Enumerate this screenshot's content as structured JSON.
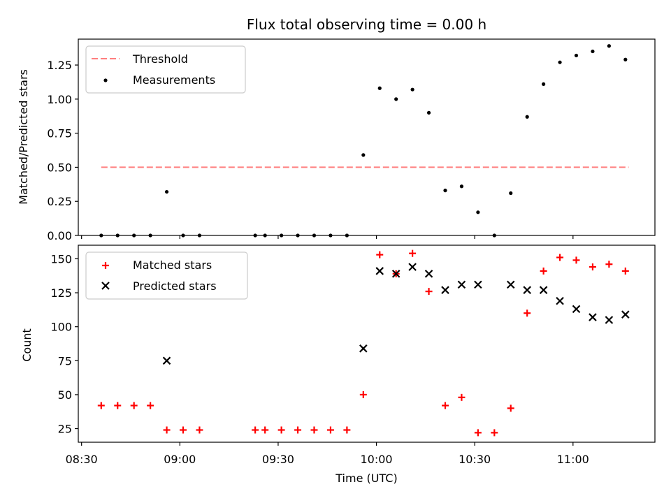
{
  "chart_data": [
    {
      "type": "scatter",
      "title": "Flux total observing time = 0.00 h",
      "xlabel": "",
      "ylabel": "Matched/Predicted stars",
      "xlim": [
        "08:29",
        "11:25"
      ],
      "ylim": [
        0,
        1.44
      ],
      "yticks": [
        "0.00",
        "0.25",
        "0.50",
        "0.75",
        "1.00",
        "1.25"
      ],
      "xticks_labels_shown": false,
      "legend_position": "top-left",
      "threshold": {
        "name": "Threshold",
        "value": 0.5,
        "x_range": [
          "08:36",
          "11:17"
        ],
        "color": "#ff7f7f",
        "style": "dashed"
      },
      "series": [
        {
          "name": "Measurements",
          "marker": "dot",
          "color": "#000000",
          "points": [
            [
              "08:36",
              0.0
            ],
            [
              "08:41",
              0.0
            ],
            [
              "08:46",
              0.0
            ],
            [
              "08:51",
              0.0
            ],
            [
              "08:56",
              0.32
            ],
            [
              "09:01",
              0.0
            ],
            [
              "09:06",
              0.0
            ],
            [
              "09:23",
              0.0
            ],
            [
              "09:26",
              0.0
            ],
            [
              "09:31",
              0.0
            ],
            [
              "09:36",
              0.0
            ],
            [
              "09:41",
              0.0
            ],
            [
              "09:46",
              0.0
            ],
            [
              "09:51",
              0.0
            ],
            [
              "09:56",
              0.59
            ],
            [
              "10:01",
              1.08
            ],
            [
              "10:06",
              1.0
            ],
            [
              "10:11",
              1.07
            ],
            [
              "10:16",
              0.9
            ],
            [
              "10:21",
              0.33
            ],
            [
              "10:26",
              0.36
            ],
            [
              "10:31",
              0.17
            ],
            [
              "10:36",
              0.0
            ],
            [
              "10:41",
              0.31
            ],
            [
              "10:46",
              0.87
            ],
            [
              "10:51",
              1.11
            ],
            [
              "10:56",
              1.27
            ],
            [
              "11:01",
              1.32
            ],
            [
              "11:06",
              1.35
            ],
            [
              "11:11",
              1.39
            ],
            [
              "11:16",
              1.29
            ]
          ]
        }
      ]
    },
    {
      "type": "scatter",
      "title": "",
      "xlabel": "Time (UTC)",
      "ylabel": "Count",
      "xlim": [
        "08:29",
        "11:25"
      ],
      "ylim": [
        15,
        160
      ],
      "xticks": [
        "08:30",
        "09:00",
        "09:30",
        "10:00",
        "10:30",
        "11:00"
      ],
      "yticks": [
        "25",
        "50",
        "75",
        "100",
        "125",
        "150"
      ],
      "legend_position": "top-left",
      "series": [
        {
          "name": "Matched stars",
          "marker": "plus",
          "color": "#ff0000",
          "points": [
            [
              "08:36",
              42
            ],
            [
              "08:41",
              42
            ],
            [
              "08:46",
              42
            ],
            [
              "08:51",
              42
            ],
            [
              "08:56",
              24
            ],
            [
              "09:01",
              24
            ],
            [
              "09:06",
              24
            ],
            [
              "09:23",
              24
            ],
            [
              "09:26",
              24
            ],
            [
              "09:31",
              24
            ],
            [
              "09:36",
              24
            ],
            [
              "09:41",
              24
            ],
            [
              "09:46",
              24
            ],
            [
              "09:51",
              24
            ],
            [
              "09:56",
              50
            ],
            [
              "10:01",
              153
            ],
            [
              "10:06",
              139
            ],
            [
              "10:11",
              154
            ],
            [
              "10:16",
              126
            ],
            [
              "10:21",
              42
            ],
            [
              "10:26",
              48
            ],
            [
              "10:31",
              22
            ],
            [
              "10:36",
              22
            ],
            [
              "10:41",
              40
            ],
            [
              "10:46",
              110
            ],
            [
              "10:51",
              141
            ],
            [
              "10:56",
              151
            ],
            [
              "11:01",
              149
            ],
            [
              "11:06",
              144
            ],
            [
              "11:11",
              146
            ],
            [
              "11:16",
              141
            ]
          ]
        },
        {
          "name": "Predicted stars",
          "marker": "x",
          "color": "#000000",
          "points": [
            [
              "08:56",
              75
            ],
            [
              "09:56",
              84
            ],
            [
              "10:01",
              141
            ],
            [
              "10:06",
              139
            ],
            [
              "10:11",
              144
            ],
            [
              "10:16",
              139
            ],
            [
              "10:21",
              127
            ],
            [
              "10:26",
              131
            ],
            [
              "10:31",
              131
            ],
            [
              "10:41",
              131
            ],
            [
              "10:46",
              127
            ],
            [
              "10:51",
              127
            ],
            [
              "10:56",
              119
            ],
            [
              "11:01",
              113
            ],
            [
              "11:06",
              107
            ],
            [
              "11:11",
              105
            ],
            [
              "11:16",
              109
            ]
          ]
        }
      ]
    }
  ]
}
